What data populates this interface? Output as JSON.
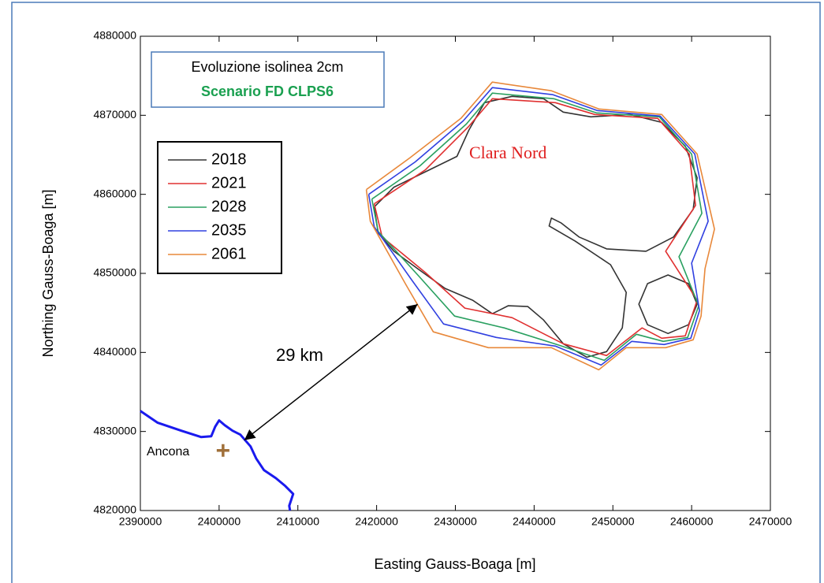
{
  "chart_data": {
    "type": "line",
    "xlabel": "Easting Gauss-Boaga [m]",
    "ylabel": "Northing Gauss-Boaga [m]",
    "xlim": [
      2390000,
      2470000
    ],
    "ylim": [
      4820000,
      4880000
    ],
    "xticks": [
      2390000,
      2400000,
      2410000,
      2420000,
      2430000,
      2440000,
      2450000,
      2460000,
      2470000
    ],
    "yticks": [
      4820000,
      4830000,
      4840000,
      4850000,
      4860000,
      4870000,
      4880000
    ],
    "grid": false,
    "box_title": "Evoluzione isolinea 2cm",
    "box_subtitle": "Scenario FD CLPS6",
    "box_subtitle_color": "#1aa050",
    "series": [
      {
        "name": "2018",
        "color": "#333333",
        "x": [
          2419700,
          2422200,
          2426700,
          2430200,
          2431700,
          2433700,
          2437200,
          2441200,
          2443700,
          2447200,
          2452200,
          2456200,
          2459200,
          2460700,
          2460200,
          2457700,
          2454200,
          2449200,
          2445700,
          2443400,
          2442200,
          2441900,
          2445200,
          2449700,
          2451700,
          2451200,
          2449200,
          2446700,
          2443700,
          2441200,
          2439200,
          2436700,
          2434700,
          2432200,
          2428700,
          2425200,
          2422200,
          2420200,
          2419700,
          null,
          2460700,
          2459600,
          2457000,
          2454400,
          2453300,
          2454400,
          2457000,
          2459600,
          2460700
        ],
        "y": [
          4858400,
          4860900,
          4863100,
          4864800,
          4868100,
          4871600,
          4872400,
          4872100,
          4870400,
          4869800,
          4870100,
          4869100,
          4866100,
          4862100,
          4858100,
          4854600,
          4852800,
          4853100,
          4854600,
          4856400,
          4857000,
          4856000,
          4854100,
          4851100,
          4847600,
          4843100,
          4840100,
          4839400,
          4841100,
          4844100,
          4845800,
          4845900,
          4844900,
          4846600,
          4848100,
          4850600,
          4852800,
          4855100,
          4858400,
          null,
          4846100,
          4843500,
          4842400,
          4843500,
          4846100,
          4848700,
          4849800,
          4848700,
          4846100
        ]
      },
      {
        "name": "2021",
        "color": "#e03030",
        "x": [
          2419700,
          2426200,
          2431700,
          2434700,
          2442700,
          2447700,
          2455700,
          2459700,
          2460500,
          2456700,
          2460700,
          2459200,
          2456200,
          2453700,
          2449200,
          2443700,
          2437200,
          2431200,
          2426200,
          2420700,
          2419700
        ],
        "y": [
          4858800,
          4863100,
          4868600,
          4872100,
          4871600,
          4870100,
          4869600,
          4865100,
          4858600,
          4852800,
          4846600,
          4842100,
          4841800,
          4843100,
          4839600,
          4841100,
          4844400,
          4845600,
          4850100,
          4854600,
          4858800
        ]
      },
      {
        "name": "2028",
        "color": "#2aa060",
        "x": [
          2419400,
          2425500,
          2431400,
          2434700,
          2442500,
          2447900,
          2455900,
          2460000,
          2461300,
          2458400,
          2460900,
          2459500,
          2456400,
          2453000,
          2448900,
          2443200,
          2436200,
          2429900,
          2425400,
          2420200,
          2419400
        ],
        "y": [
          4859400,
          4863600,
          4868900,
          4872800,
          4872100,
          4870300,
          4869800,
          4865100,
          4857600,
          4852100,
          4845900,
          4841900,
          4841400,
          4842300,
          4839000,
          4840900,
          4843100,
          4844600,
          4849600,
          4855300,
          4859400
        ]
      },
      {
        "name": "2035",
        "color": "#3040e0",
        "x": [
          2419000,
          2424900,
          2431000,
          2434700,
          2442400,
          2448000,
          2456000,
          2460400,
          2462100,
          2460000,
          2461000,
          2459900,
          2456500,
          2452400,
          2448500,
          2442700,
          2435200,
          2428500,
          2424500,
          2419700,
          2419000
        ],
        "y": [
          4860000,
          4864100,
          4869300,
          4873500,
          4872600,
          4870600,
          4869900,
          4865100,
          4856600,
          4851300,
          4845300,
          4841800,
          4841000,
          4841400,
          4838400,
          4840800,
          4841900,
          4843600,
          4849100,
          4855900,
          4860000
        ]
      },
      {
        "name": "2061",
        "color": "#e8883a",
        "x": [
          2418700,
          2424200,
          2430700,
          2434700,
          2442200,
          2448200,
          2456200,
          2460700,
          2462900,
          2461700,
          2461200,
          2460200,
          2456700,
          2451700,
          2448200,
          2442200,
          2434200,
          2427200,
          2423700,
          2419200,
          2418700
        ],
        "y": [
          4860600,
          4864600,
          4869600,
          4874200,
          4873100,
          4870800,
          4870100,
          4865100,
          4855600,
          4850600,
          4844600,
          4841600,
          4840600,
          4840600,
          4837800,
          4840600,
          4840600,
          4842600,
          4848600,
          4856600,
          4860600
        ]
      }
    ],
    "coastline": {
      "color": "#1a1aee",
      "x": [
        2390000,
        2392200,
        2395200,
        2397700,
        2399000,
        2399500,
        2400000,
        2400700,
        2401700,
        2402700,
        2404000,
        2404700,
        2405700,
        2407200,
        2408400,
        2409400,
        2408900,
        2409000
      ],
      "y": [
        4832600,
        4831100,
        4830100,
        4829300,
        4829400,
        4830600,
        4831400,
        4830800,
        4830100,
        4829600,
        4828100,
        4826600,
        4825100,
        4824100,
        4823100,
        4822100,
        4820600,
        4820000
      ]
    },
    "annotations": {
      "region": "Clara Nord",
      "region_color": "#e02020",
      "distance": {
        "label": "29 km",
        "x": [
          2403200,
          2425200
        ],
        "y": [
          4828900,
          4846100
        ]
      },
      "city": {
        "label": "Ancona",
        "x": 2400500,
        "y": 4827600,
        "color": "#a0703a"
      }
    }
  }
}
